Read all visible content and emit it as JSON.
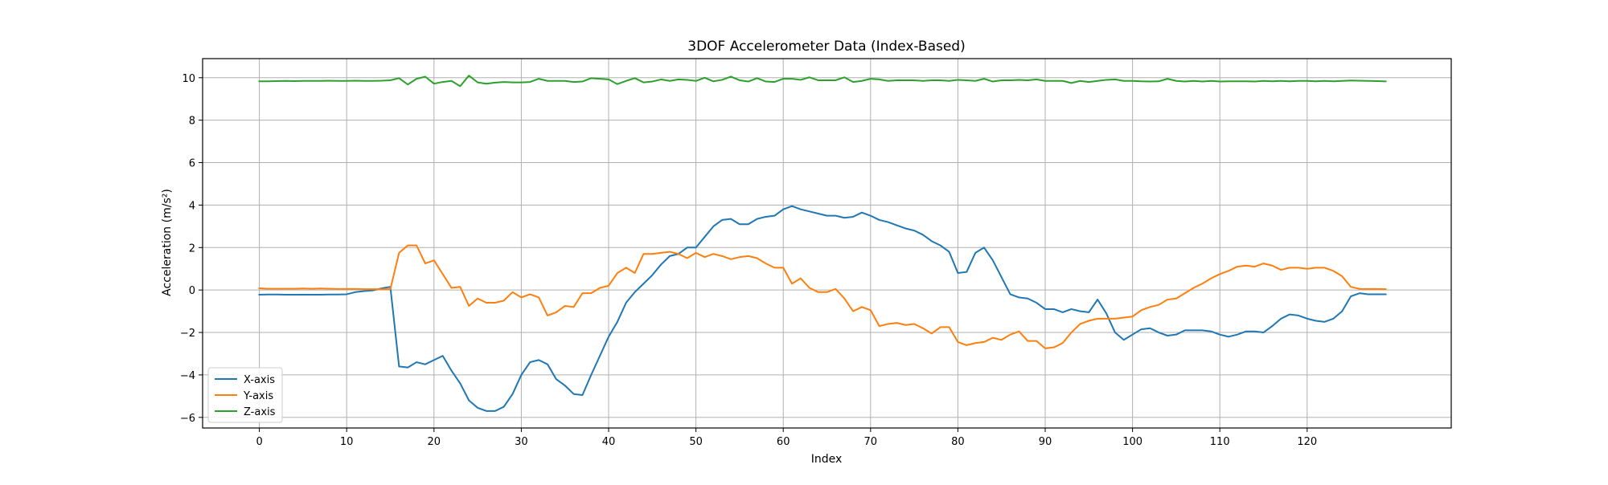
{
  "chart_data": {
    "type": "line",
    "title": "3DOF Accelerometer Data (Index-Based)",
    "xlabel": "Index",
    "ylabel": "Acceleration (m/s²)",
    "xlim": [
      -6.5,
      136.5
    ],
    "ylim": [
      -6.5,
      10.9
    ],
    "xticks": [
      0,
      10,
      20,
      30,
      40,
      50,
      60,
      70,
      80,
      90,
      100,
      110,
      120
    ],
    "yticks": [
      -6,
      -4,
      -2,
      0,
      2,
      4,
      6,
      8,
      10
    ],
    "grid": true,
    "legend": "lower-left",
    "series": [
      {
        "name": "X-axis",
        "color": "#1f77b4",
        "values": [
          -0.22,
          -0.21,
          -0.21,
          -0.22,
          -0.22,
          -0.22,
          -0.22,
          -0.22,
          -0.21,
          -0.21,
          -0.2,
          -0.1,
          -0.05,
          -0.02,
          0.08,
          0.15,
          -3.6,
          -3.65,
          -3.4,
          -3.5,
          -3.3,
          -3.1,
          -3.8,
          -4.4,
          -5.2,
          -5.55,
          -5.7,
          -5.7,
          -5.5,
          -4.9,
          -4.0,
          -3.4,
          -3.3,
          -3.5,
          -4.2,
          -4.5,
          -4.9,
          -4.95,
          -4.0,
          -3.1,
          -2.2,
          -1.5,
          -0.6,
          -0.1,
          0.3,
          0.7,
          1.2,
          1.6,
          1.7,
          2.0,
          2.0,
          2.5,
          3.0,
          3.3,
          3.35,
          3.1,
          3.1,
          3.35,
          3.45,
          3.5,
          3.8,
          3.95,
          3.8,
          3.7,
          3.6,
          3.5,
          3.5,
          3.4,
          3.45,
          3.65,
          3.5,
          3.3,
          3.2,
          3.05,
          2.9,
          2.8,
          2.6,
          2.3,
          2.1,
          1.8,
          0.8,
          0.85,
          1.75,
          2.0,
          1.4,
          0.6,
          -0.2,
          -0.35,
          -0.4,
          -0.6,
          -0.9,
          -0.9,
          -1.05,
          -0.9,
          -1.0,
          -1.05,
          -0.45,
          -1.1,
          -2.0,
          -2.35,
          -2.1,
          -1.85,
          -1.8,
          -2.0,
          -2.15,
          -2.1,
          -1.9,
          -1.9,
          -1.9,
          -1.95,
          -2.1,
          -2.2,
          -2.1,
          -1.95,
          -1.95,
          -2.0,
          -1.7,
          -1.35,
          -1.15,
          -1.2,
          -1.35,
          -1.45,
          -1.5,
          -1.35,
          -1.0,
          -0.3,
          -0.15,
          -0.2,
          -0.2,
          -0.2
        ]
      },
      {
        "name": "Y-axis",
        "color": "#ff7f0e",
        "values": [
          0.08,
          0.06,
          0.06,
          0.06,
          0.06,
          0.07,
          0.06,
          0.07,
          0.06,
          0.05,
          0.05,
          0.05,
          0.04,
          0.04,
          0.04,
          0.04,
          1.75,
          2.1,
          2.1,
          1.25,
          1.4,
          0.75,
          0.1,
          0.15,
          -0.75,
          -0.4,
          -0.6,
          -0.6,
          -0.5,
          -0.1,
          -0.35,
          -0.2,
          -0.35,
          -1.2,
          -1.05,
          -0.75,
          -0.8,
          -0.15,
          -0.15,
          0.1,
          0.2,
          0.8,
          1.05,
          0.8,
          1.7,
          1.7,
          1.75,
          1.8,
          1.7,
          1.5,
          1.75,
          1.55,
          1.7,
          1.6,
          1.45,
          1.55,
          1.6,
          1.5,
          1.25,
          1.05,
          1.05,
          0.3,
          0.55,
          0.1,
          -0.1,
          -0.1,
          0.05,
          -0.4,
          -1.0,
          -0.8,
          -0.95,
          -1.7,
          -1.6,
          -1.55,
          -1.65,
          -1.6,
          -1.8,
          -2.05,
          -1.75,
          -1.75,
          -2.45,
          -2.6,
          -2.5,
          -2.45,
          -2.25,
          -2.35,
          -2.1,
          -1.95,
          -2.4,
          -2.4,
          -2.75,
          -2.7,
          -2.5,
          -2.0,
          -1.6,
          -1.45,
          -1.35,
          -1.35,
          -1.35,
          -1.3,
          -1.25,
          -0.95,
          -0.8,
          -0.7,
          -0.45,
          -0.4,
          -0.15,
          0.1,
          0.3,
          0.55,
          0.75,
          0.9,
          1.1,
          1.15,
          1.1,
          1.25,
          1.15,
          0.95,
          1.05,
          1.05,
          1.0,
          1.05,
          1.05,
          0.9,
          0.65,
          0.15,
          0.05,
          0.05,
          0.05,
          0.04
        ]
      },
      {
        "name": "Z-axis",
        "color": "#2ca02c",
        "values": [
          9.83,
          9.83,
          9.84,
          9.85,
          9.84,
          9.85,
          9.85,
          9.85,
          9.86,
          9.85,
          9.85,
          9.86,
          9.85,
          9.85,
          9.86,
          9.88,
          9.98,
          9.68,
          9.95,
          10.05,
          9.72,
          9.8,
          9.85,
          9.6,
          10.1,
          9.78,
          9.72,
          9.77,
          9.8,
          9.78,
          9.78,
          9.8,
          9.95,
          9.85,
          9.85,
          9.85,
          9.8,
          9.82,
          9.98,
          9.95,
          9.92,
          9.7,
          9.85,
          9.98,
          9.78,
          9.82,
          9.92,
          9.85,
          9.92,
          9.9,
          9.85,
          10.0,
          9.83,
          9.9,
          10.05,
          9.88,
          9.82,
          9.98,
          9.82,
          9.8,
          9.95,
          9.95,
          9.9,
          10.02,
          9.88,
          9.88,
          9.88,
          10.02,
          9.8,
          9.85,
          9.95,
          9.92,
          9.85,
          9.88,
          9.88,
          9.88,
          9.85,
          9.88,
          9.88,
          9.85,
          9.9,
          9.88,
          9.85,
          9.95,
          9.82,
          9.88,
          9.88,
          9.9,
          9.88,
          9.92,
          9.85,
          9.85,
          9.85,
          9.75,
          9.85,
          9.8,
          9.85,
          9.9,
          9.92,
          9.85,
          9.85,
          9.83,
          9.82,
          9.83,
          9.95,
          9.85,
          9.82,
          9.85,
          9.82,
          9.85,
          9.82,
          9.83,
          9.83,
          9.83,
          9.82,
          9.85,
          9.83,
          9.85,
          9.83,
          9.85,
          9.85,
          9.83,
          9.85,
          9.83,
          9.85,
          9.87,
          9.86,
          9.85,
          9.84,
          9.83
        ]
      }
    ]
  }
}
